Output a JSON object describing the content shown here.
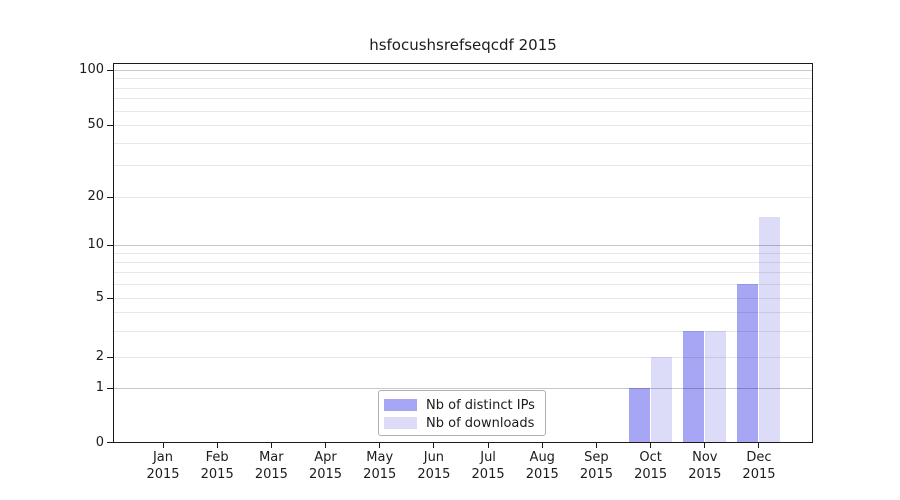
{
  "chart_data": {
    "type": "bar",
    "title": "hsfocushsrefseqcdf 2015",
    "categories": [
      "Jan",
      "Feb",
      "Mar",
      "Apr",
      "May",
      "Jun",
      "Jul",
      "Aug",
      "Sep",
      "Oct",
      "Nov",
      "Dec"
    ],
    "category_year": "2015",
    "series": [
      {
        "name": "Nb of distinct IPs",
        "color": "#a6a6f4",
        "values": [
          0,
          0,
          0,
          0,
          0,
          0,
          0,
          0,
          0,
          1,
          3,
          6
        ]
      },
      {
        "name": "Nb of downloads",
        "color": "#dcdcf9",
        "values": [
          0,
          0,
          0,
          0,
          0,
          0,
          0,
          0,
          0,
          2,
          3,
          15
        ]
      }
    ],
    "xlabel": "",
    "ylabel": "",
    "y_axis": {
      "scale": "symlog",
      "tick_values": [
        0,
        1,
        2,
        5,
        10,
        20,
        50,
        100
      ],
      "tick_labels": [
        "0",
        "1",
        "2",
        "5",
        "10",
        "20",
        "50",
        "100"
      ],
      "major_gridlines": [
        1,
        10,
        100
      ],
      "minor_gridlines": [
        2,
        3,
        4,
        5,
        6,
        7,
        8,
        9,
        20,
        30,
        40,
        50,
        60,
        70,
        80,
        90
      ],
      "ylim": [
        0,
        110
      ]
    },
    "grid": true,
    "legend_position": "lower center"
  }
}
